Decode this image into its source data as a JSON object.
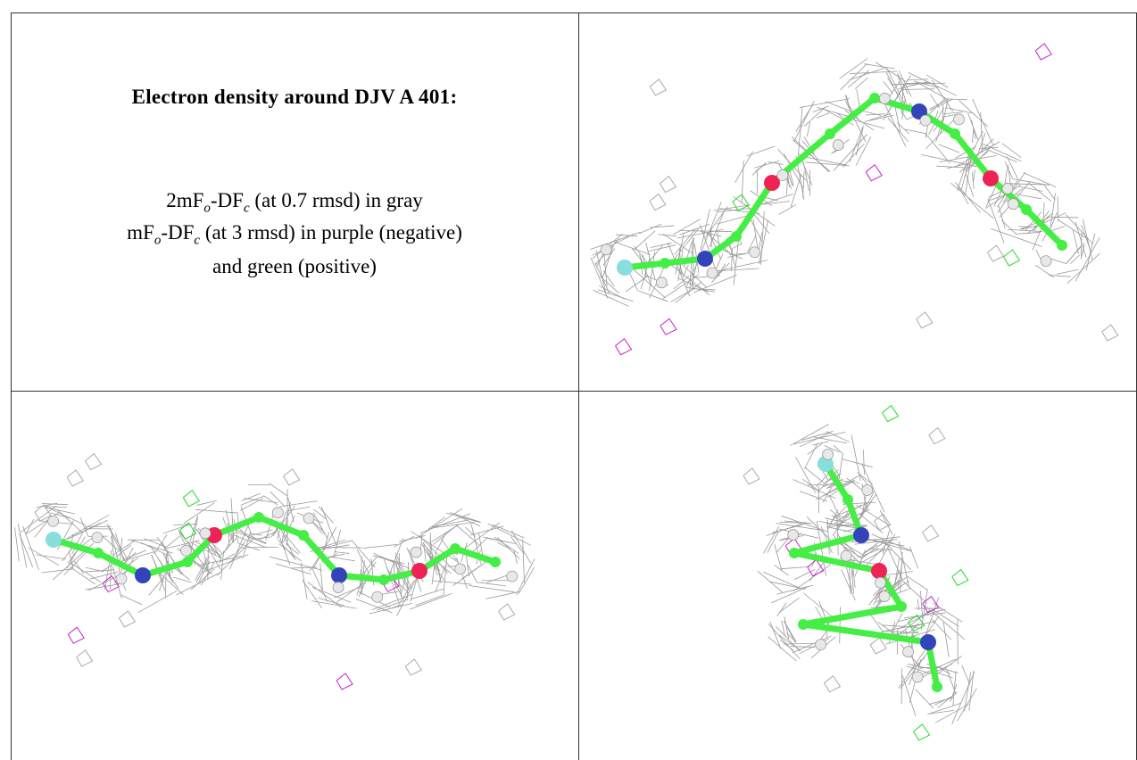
{
  "title": "Electron density around DJV A 401:",
  "legend": [
    [
      "2mF",
      "o",
      "-DF",
      "c",
      " (at 0.7 rmsd) in gray"
    ],
    [
      "mF",
      "o",
      "-DF",
      "c",
      " (at 3 rmsd) in purple (negative)"
    ],
    [
      "and green (positive)"
    ]
  ]
}
